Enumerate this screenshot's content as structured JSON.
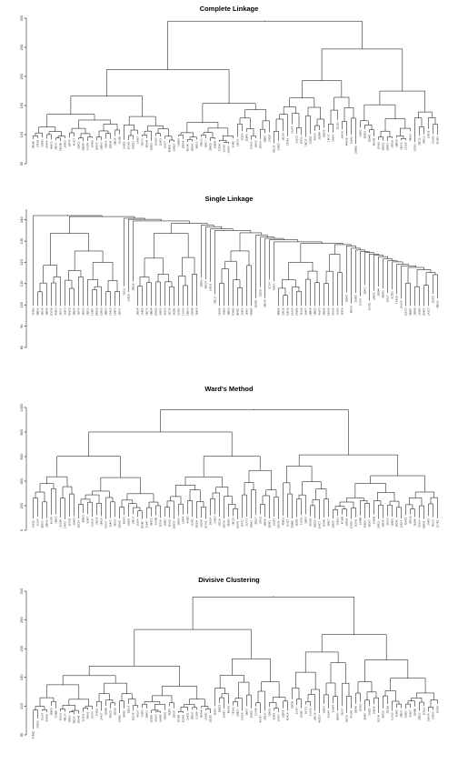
{
  "chart_data": [
    {
      "type": "dendrogram",
      "title": "Complete Linkage",
      "ylim": [
        50,
        300
      ],
      "yticks": [
        "50",
        "100",
        "150",
        "200",
        "250",
        "300"
      ],
      "n_leaves": 90,
      "root_height": 295,
      "grid": false,
      "leaf_labels": [
        "1M086",
        "2TE08",
        "1D830",
        "8A4A4",
        "4A6C5",
        "2BC07",
        "1BA3B",
        "2K8C0",
        "1BF7F",
        "4LA17",
        "2BA00",
        "2BE44",
        "1A1F4",
        "1A406",
        "2M10F",
        "1BB00",
        "2X605",
        "2BB08",
        "1BE05",
        "2A1B0",
        "1A4E3",
        "3C1A6",
        "2M1E0",
        "1A8E7",
        "1B070",
        "4BA06",
        "1E6D3",
        "2A5D0",
        "2LB05",
        "1A0C7",
        "4EB06",
        "1AB23",
        "1A6B4",
        "2BE04",
        "4E00F",
        "2BB00",
        "3EB10",
        "8B003",
        "1BAC7",
        "2BAED",
        "1A5D8",
        "2CD06",
        "1AA18",
        "2A4F0",
        "3C4B7",
        "1BC50",
        "2E305",
        "2EB40",
        "1C830",
        "1B0C0",
        "2BC04",
        "1BBE7",
        "1D087",
        "4AC2F",
        "2AB05",
        "1EC08",
        "2TE49",
        "1A1F0",
        "1A1C5",
        "1EF00",
        "1BC2F",
        "2CB8C",
        "4A105",
        "3EDB4",
        "1BD05",
        "1BC07",
        "2A6F0",
        "2E310",
        "3A41A",
        "4M00B",
        "2A6A0",
        "2DB85",
        "1AB02",
        "3E4D3",
        "1DA48",
        "4B00B",
        "1E4A5",
        "2B6C5",
        "2BD03",
        "2BE18",
        "3BB08",
        "1EA1C",
        "2C1A5",
        "4BA07",
        "1C830",
        "2BC15",
        "2BE10",
        "1AB05",
        "2CA80",
        "4C0B0"
      ],
      "leaf_depth": [
        100,
        105,
        95,
        110,
        118,
        102,
        99,
        97,
        122,
        127,
        96,
        112,
        132,
        128,
        90,
        93,
        107,
        116,
        121,
        104,
        91,
        92,
        118,
        120,
        111,
        94,
        89,
        115,
        103,
        97,
        125,
        99,
        108,
        110,
        116,
        114,
        133,
        136,
        101,
        109,
        117,
        111,
        86,
        88,
        102,
        96,
        120,
        126,
        117,
        129,
        92,
        108,
        104,
        85,
        89,
        106,
        97,
        123,
        130,
        127,
        96,
        101,
        106,
        110,
        114,
        104,
        113,
        128,
        133,
        98,
        100,
        84,
        112,
        115,
        118,
        123,
        96,
        91,
        105,
        109,
        131,
        134,
        113,
        106,
        87,
        98,
        102,
        110,
        125,
        100
      ]
    },
    {
      "type": "dendrogram",
      "title": "Single Linkage",
      "ylim": [
        80,
        145
      ],
      "yticks": [
        "80",
        "90",
        "100",
        "110",
        "120",
        "130",
        "140"
      ],
      "n_leaves": 90,
      "root_height": 142,
      "grid": false,
      "leaf_labels": [
        "1C4B0",
        "4BB05",
        "2BC04",
        "2BB04",
        "1DC06",
        "4A8F2",
        "2EA17",
        "1A5F0",
        "4C6C9",
        "2BE04",
        "1BF7F",
        "2BA00",
        "2EB10",
        "1C4B7",
        "2BD08",
        "1D803",
        "2BB00",
        "2A4C0",
        "1D4F0",
        "2B007",
        "1E001",
        "2AB18",
        "3EB06",
        "2BE04",
        "1A4E5",
        "1BC70",
        "2BB04",
        "1D6D3",
        "2AB05",
        "4A1F2",
        "1EC30",
        "3A2B1",
        "2C5E0",
        "1CA00",
        "2BEC4",
        "3CB46",
        "1BAF8",
        "2EB80",
        "4BC04",
        "1AB03",
        "2BC17",
        "1EC85",
        "1A9E0",
        "2BB03",
        "1DA65",
        "3B4D1",
        "2A6F0",
        "1E4A7",
        "4DE6F",
        "1B04D",
        "1EB30",
        "2BE08",
        "3C1A7",
        "1E605",
        "4B8A6",
        "2DE1E",
        "1DB18",
        "1AA2A",
        "2A8B5",
        "1E1A9",
        "3A4F1",
        "2BB06",
        "1BB20",
        "4A0F3",
        "2EB04",
        "1BAC6",
        "3C0A5",
        "1A7E3",
        "2E2F8",
        "1DB47",
        "4B5A7",
        "2E8E5",
        "1CA57",
        "3BAF0",
        "1A0D1",
        "2AB05",
        "2BD44",
        "4B0D0",
        "1EA07",
        "3C2D5",
        "1C4A8",
        "2AA08",
        "1DC00",
        "4B8B7",
        "2EB48",
        "1A5B0",
        "3D4A7",
        "2A1C0",
        "1E0D3",
        "4BD20"
      ]
    },
    {
      "type": "dendrogram",
      "title": "Ward's Method",
      "ylim": [
        0,
        1000
      ],
      "yticks": [
        "0",
        "200",
        "400",
        "600",
        "800",
        "1000"
      ],
      "n_leaves": 90,
      "root_height": 980,
      "grid": false,
      "leaf_labels": [
        "1A418",
        "1CA7F",
        "3EB00",
        "2BE43",
        "4A0F8",
        "1BE02",
        "2A1B8",
        "1A6F2",
        "1E7D5",
        "2AB05",
        "1BC14",
        "4BB02",
        "3C4E7",
        "1D003",
        "2AE18",
        "1B420",
        "1EA07",
        "2A4F0",
        "4E0A7",
        "2DA08",
        "3B4F1",
        "1AB05",
        "2BC07",
        "1A1F4",
        "2E5B0",
        "1CB47",
        "4B4C5",
        "2A0B6",
        "1E706",
        "1D8E1",
        "3EA05",
        "2BD00",
        "1BE00",
        "2A8F4",
        "4A6B7",
        "1CA41",
        "2E0D4",
        "1D006",
        "3C0A5",
        "2BA14",
        "1A4E3",
        "1DC00",
        "2B7A8",
        "4E5B0",
        "1BC23",
        "3A405",
        "1E7A1",
        "2CA73",
        "1D8A3",
        "4B107",
        "2A0C1",
        "1EB04",
        "3D0B1",
        "1A0B7",
        "2E008",
        "4BB03",
        "1A0E7",
        "2D6B8",
        "3E0B5",
        "1CA02",
        "2BE07",
        "4A5D0",
        "1BE18",
        "2A8C7",
        "1E5A6",
        "3B4C7",
        "2DE00",
        "1AB13",
        "4C4B5",
        "2BB08",
        "1D0E0",
        "3CE41",
        "1A8B4",
        "2EB05",
        "4B0A7",
        "1C6D8",
        "2AB10",
        "1EB36",
        "3A0C8",
        "1D5B3",
        "2BC40",
        "1AE04",
        "4D0E5",
        "2B0C6",
        "1EA84",
        "3C5A0",
        "1BB05",
        "2A4E7",
        "4E0C1",
        "1C7B5"
      ],
      "leaf_depth": [
        95,
        110,
        92,
        100,
        125,
        130,
        104,
        90,
        112,
        118,
        96,
        140,
        130,
        108,
        122,
        115,
        92,
        100,
        108,
        96,
        125,
        112,
        130,
        108,
        90,
        96,
        115,
        120,
        100,
        110,
        104,
        92,
        118,
        128,
        134,
        110,
        96,
        102,
        92,
        120,
        130,
        112,
        96,
        108,
        116,
        90,
        102,
        110,
        96,
        124,
        130,
        108,
        96,
        112,
        92,
        118,
        104,
        96,
        108,
        122,
        130,
        114,
        98,
        90,
        104,
        110,
        96,
        118,
        128,
        112,
        92,
        106,
        120,
        96,
        104,
        128,
        92,
        100,
        116,
        110,
        104,
        96,
        122,
        130,
        108,
        100,
        92,
        116,
        106,
        98
      ]
    },
    {
      "type": "dendrogram",
      "title": "Divisive Clustering",
      "ylim": [
        50,
        300
      ],
      "yticks": [
        "50",
        "100",
        "150",
        "200",
        "250",
        "300"
      ],
      "n_leaves": 90,
      "root_height": 290,
      "grid": false,
      "leaf_labels": [
        "4TB3D",
        "2TB05",
        "1A2A7",
        "3AB18",
        "2BB05",
        "1C4B6",
        "1E1A3",
        "4BC1F",
        "2BE00",
        "3B005",
        "1DA46",
        "1A2D3",
        "2E4A5",
        "3CF00",
        "1CB03",
        "2A417",
        "1D8E6",
        "4B0C5",
        "2BA16",
        "1A6B0",
        "3E4F2",
        "1BE03",
        "2DC05",
        "4A1A7",
        "1C8E0",
        "2BB01",
        "1E0D6",
        "3A5A0",
        "2A4E8",
        "1DB05",
        "4E6F1",
        "1BA07",
        "2E0B4",
        "3C6A8",
        "1AE31",
        "2BD07",
        "1C0B6",
        "4B4A4",
        "2AA41",
        "1D2E5",
        "3E0F0",
        "1BB16",
        "2A6E7",
        "4B005",
        "1E3A6",
        "2DB00",
        "1A5C4",
        "3BA07",
        "2E6D5",
        "1CA48",
        "4A0E7",
        "2BE30",
        "1D605",
        "3C4E1",
        "1A0A7",
        "2EB05",
        "4D4C6",
        "1BE08",
        "2A3F7",
        "1E5B0",
        "3A7C5",
        "1CA06",
        "2BC08",
        "4E1D3",
        "1DB07",
        "2A0A5",
        "1A8E4",
        "3B6D0",
        "2EA17",
        "1BC05",
        "4C0A6",
        "2BE48",
        "1D9A0",
        "3E4B7",
        "1A5B5",
        "2AB06",
        "1EC04",
        "4B7D1",
        "2D0E8",
        "1CA30",
        "3A1B5",
        "2BE07",
        "1A6E0",
        "4A5C7",
        "1D4B8",
        "2EB20",
        "3C1E6",
        "1BA04",
        "2CB00",
        "1E4A0"
      ],
      "leaf_depth": [
        60,
        78,
        92,
        100,
        118,
        126,
        110,
        96,
        104,
        130,
        88,
        92,
        98,
        104,
        112,
        92,
        110,
        96,
        120,
        88,
        96,
        104,
        92,
        100,
        110,
        96,
        88,
        104,
        92,
        112,
        100,
        120,
        96,
        108,
        92,
        104,
        120,
        110,
        96,
        88,
        100,
        112,
        96,
        104,
        120,
        108,
        92,
        100,
        96,
        112,
        88,
        92,
        104,
        96,
        108,
        100,
        92,
        112,
        104,
        96,
        118,
        100,
        92,
        88,
        104,
        96,
        110,
        92,
        100,
        88,
        96,
        104,
        112,
        92,
        100,
        110,
        88,
        96,
        104,
        92,
        100,
        108,
        96,
        104,
        100,
        92,
        104,
        96,
        108,
        112
      ]
    }
  ]
}
